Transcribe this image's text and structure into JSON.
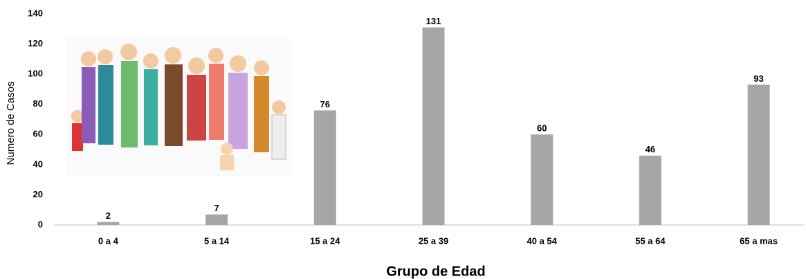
{
  "chart_data": {
    "type": "bar",
    "categories": [
      "0 a 4",
      "5 a 14",
      "15 a 24",
      "25 a 39",
      "40 a 54",
      "55 a 64",
      "65 a mas"
    ],
    "values": [
      2,
      7,
      76,
      131,
      60,
      46,
      93
    ],
    "color": "#a6a6a6",
    "x_label": "Grupo de Edad",
    "y_label": "Numero de Casos",
    "ylim": [
      0,
      140
    ],
    "yticks": [
      0,
      20,
      40,
      60,
      80,
      100,
      120,
      140
    ],
    "grid": false
  }
}
